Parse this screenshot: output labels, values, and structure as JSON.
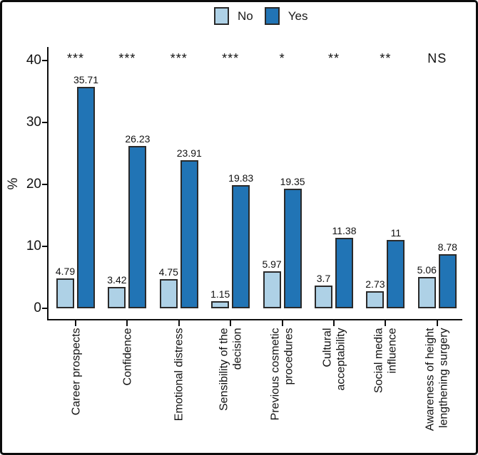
{
  "figure": {
    "background": "#ffffff",
    "border_color": "#0c0c0c"
  },
  "legend": {
    "position": "top-center",
    "items": [
      {
        "label": "No",
        "color": "#aed1e6"
      },
      {
        "label": "Yes",
        "color": "#2174b5"
      }
    ]
  },
  "chart_data": {
    "type": "bar",
    "title": "",
    "xlabel": "",
    "ylabel": "%",
    "ylim": [
      0,
      42
    ],
    "yticks": [
      0,
      10,
      20,
      30,
      40
    ],
    "grid": false,
    "legend_position": "top-center",
    "bar_outline_color": "#2a2a2a",
    "categories": [
      "Career prospects",
      "Confidence",
      "Emotional distress",
      "Sensibility of the decision",
      "Previous cosmetic procedures",
      "Cultural acceptability",
      "Social media influence",
      "Awareness of height lengthening surgery"
    ],
    "category_label_lines": [
      [
        "Career prospects"
      ],
      [
        "Confidence"
      ],
      [
        "Emotional distress"
      ],
      [
        "Sensibility of the",
        "decision"
      ],
      [
        "Previous cosmetic",
        "procedures"
      ],
      [
        "Cultural",
        "acceptability"
      ],
      [
        "Social media",
        "influence"
      ],
      [
        "Awareness of height",
        "lengthening surgery"
      ]
    ],
    "series": [
      {
        "name": "No",
        "color": "#aed1e6",
        "values": [
          4.79,
          3.42,
          4.75,
          1.15,
          5.97,
          3.7,
          2.73,
          5.06
        ],
        "value_labels": [
          "4.79",
          "3.42",
          "4.75",
          "1.15",
          "5.97",
          "3.7",
          "2.73",
          "5.06"
        ]
      },
      {
        "name": "Yes",
        "color": "#2174b5",
        "values": [
          35.71,
          26.23,
          23.91,
          19.83,
          19.35,
          11.38,
          11,
          8.78
        ],
        "value_labels": [
          "35.71",
          "26.23",
          "23.91",
          "19.83",
          "19.35",
          "11.38",
          "11",
          "8.78"
        ]
      }
    ],
    "significance_markers": [
      "***",
      "***",
      "***",
      "***",
      "*",
      "**",
      "**",
      "NS"
    ]
  }
}
